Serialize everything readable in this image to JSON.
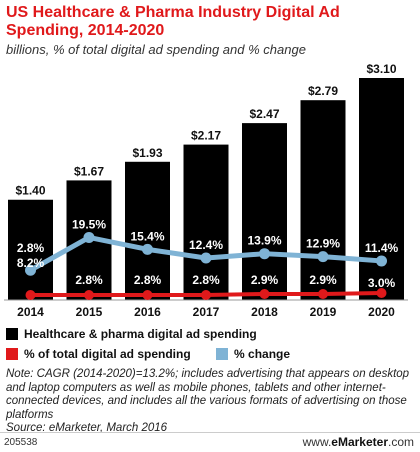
{
  "title": "US Healthcare & Pharma Industry Digital Ad Spending, 2014-2020",
  "subtitle": "billions, % of total digital ad spending and % change",
  "colors": {
    "bars": "#000000",
    "share": "#e0191b",
    "change": "#7fb3d5",
    "title": "#e0191b"
  },
  "legend": {
    "bars": "Healthcare & pharma digital ad spending",
    "share": "% of total digital ad spending",
    "change": "% change"
  },
  "note": "Note: CAGR (2014-2020)=13.2%; includes advertising that appears on desktop and laptop computers as well as mobile phones, tablets and other internet-connected devices, and includes all the various formats of advertising on those platforms",
  "source": "Source: eMarketer, March 2016",
  "footer": {
    "id": "205538",
    "brand_prefix": "www.",
    "brand_name": "eMarketer",
    "brand_suffix": ".com"
  },
  "chart_data": {
    "type": "bar",
    "categories": [
      "2014",
      "2015",
      "2016",
      "2017",
      "2018",
      "2019",
      "2020"
    ],
    "series": [
      {
        "name": "Healthcare & pharma digital ad spending",
        "type": "bar",
        "values": [
          1.4,
          1.67,
          1.93,
          2.17,
          2.47,
          2.79,
          3.1
        ],
        "labels": [
          "$1.40",
          "$1.67",
          "$1.93",
          "$2.17",
          "$2.47",
          "$2.79",
          "$3.10"
        ]
      },
      {
        "name": "% of total digital ad spending",
        "type": "line",
        "values": [
          2.8,
          2.8,
          2.8,
          2.8,
          2.9,
          2.9,
          3.0
        ],
        "labels": [
          "2.8%",
          "2.8%",
          "2.8%",
          "2.8%",
          "2.9%",
          "2.9%",
          "3.0%"
        ]
      },
      {
        "name": "% change",
        "type": "line",
        "values": [
          8.2,
          19.5,
          15.4,
          12.4,
          13.9,
          12.9,
          11.4
        ],
        "labels": [
          "8.2%",
          "19.5%",
          "15.4%",
          "12.4%",
          "13.9%",
          "12.9%",
          "11.4%"
        ]
      }
    ]
  }
}
